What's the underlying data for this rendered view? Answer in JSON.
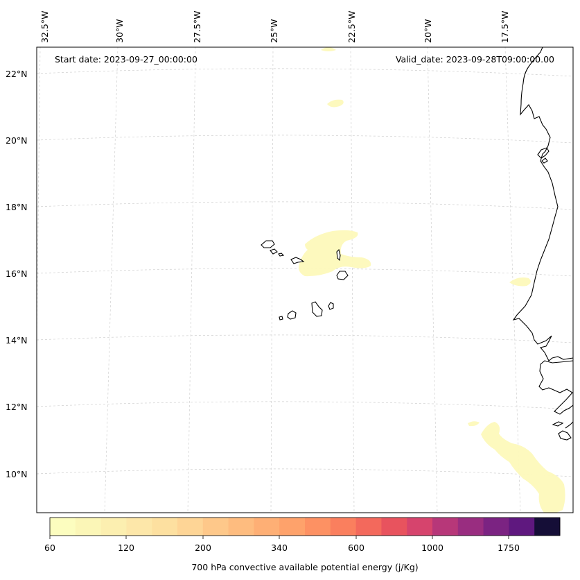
{
  "map": {
    "start_date": "Start date: 2023-09-27_00:00:00",
    "valid_date": "Valid_date: 2023-09-28T09:00:00.00",
    "longitude_labels": [
      "32.5°W",
      "30°W",
      "27.5°W",
      "25°W",
      "22.5°W",
      "20°W",
      "17.5°W"
    ],
    "latitude_labels": [
      "22°N",
      "20°N",
      "18°N",
      "16°N",
      "14°N",
      "12°N",
      "10°N"
    ]
  },
  "colorbar": {
    "title": "700 hPa convective available potential energy (j/Kg)",
    "tick_labels": [
      "60",
      "120",
      "200",
      "340",
      "600",
      "1000",
      "1750"
    ],
    "colors": [
      "#fcfdbf",
      "#fbf6b7",
      "#fcefb0",
      "#fde7a9",
      "#fde0a0",
      "#fed596",
      "#fec88a",
      "#febc7f",
      "#feaf75",
      "#fea26b",
      "#fd9163",
      "#fa7f5e",
      "#f3695c",
      "#e8535e",
      "#d6446d",
      "#b73779",
      "#992d80",
      "#7b2382",
      "#5f187f",
      "#150e37"
    ]
  },
  "field_colors": {
    "low_cape": "#fdf9bb",
    "coastline": "#000000",
    "gridline": "#cfcfcf"
  }
}
